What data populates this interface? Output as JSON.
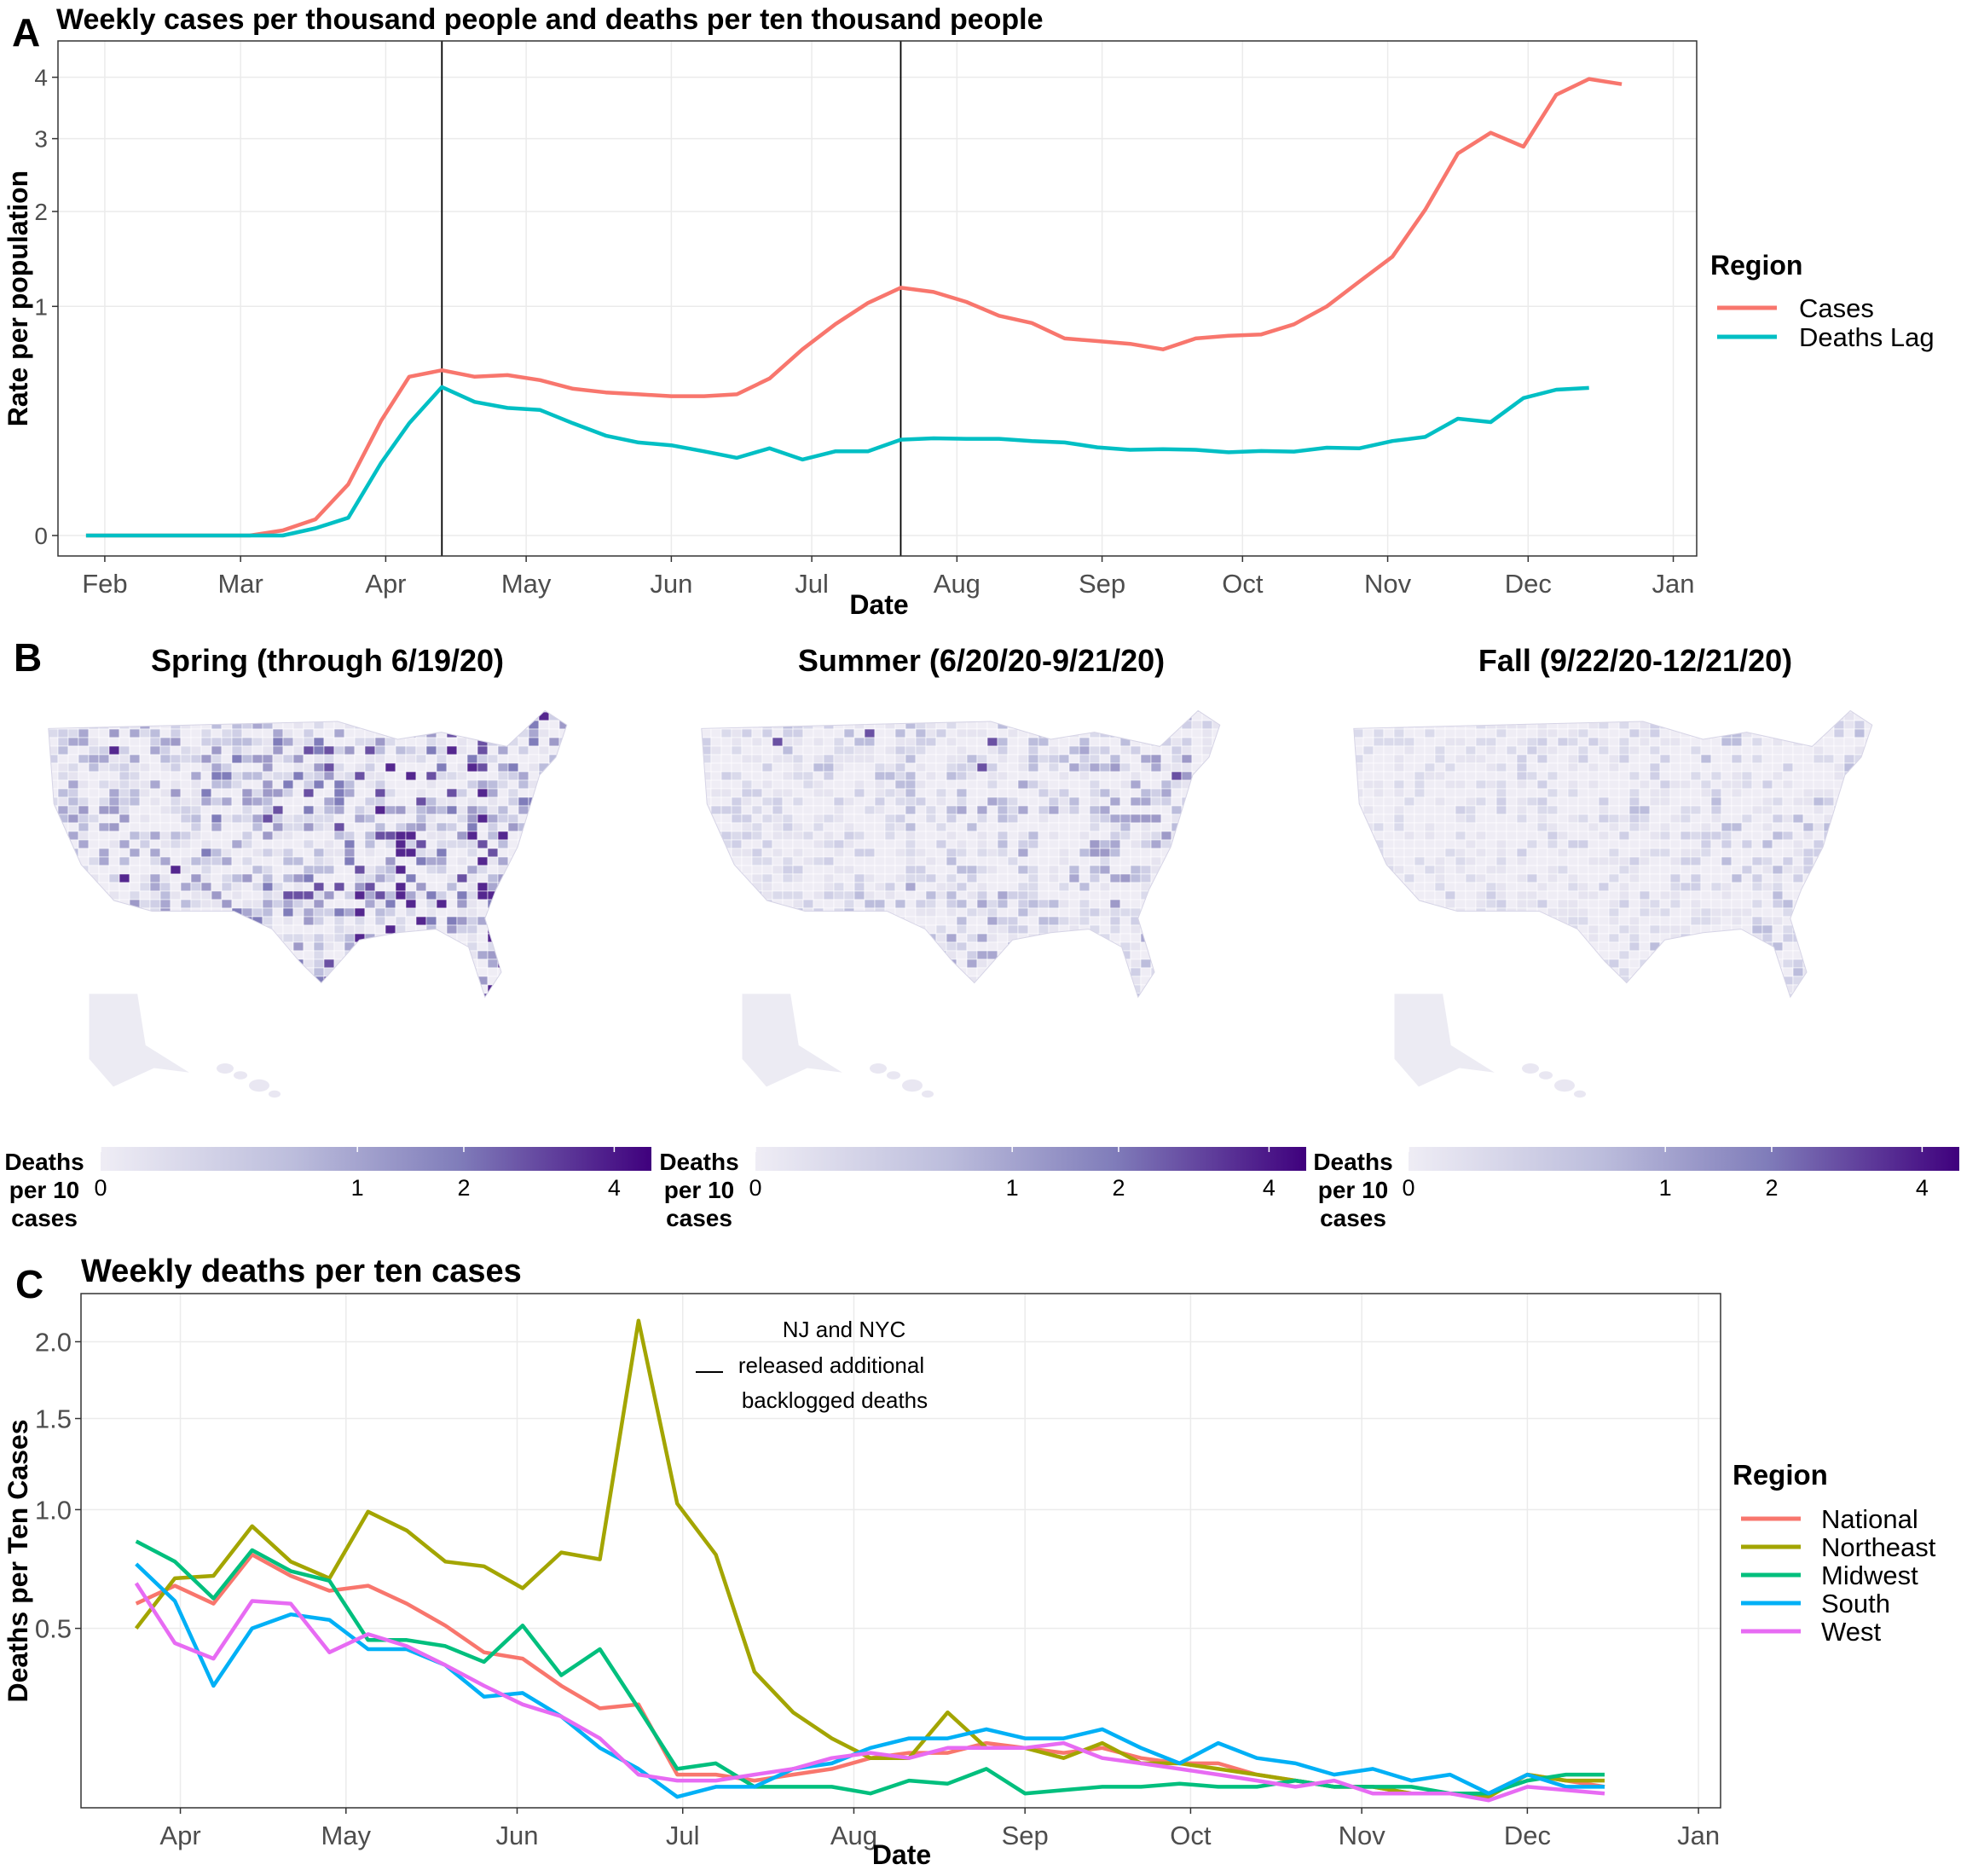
{
  "panel_labels": {
    "a": "A",
    "b": "B",
    "c": "C"
  },
  "chart_data": [
    {
      "type": "line",
      "title": "Weekly cases per thousand people and deaths per ten thousand people",
      "xlabel": "Date",
      "ylabel": "Rate per population",
      "y_scale": "sqrt",
      "ylim": [
        0,
        4.5
      ],
      "yticks": [
        0,
        1,
        2,
        3,
        4
      ],
      "xlim": [
        "2020-01-22",
        "2021-01-06"
      ],
      "xticks": [
        {
          "date": "2020-02-01",
          "label": "Feb"
        },
        {
          "date": "2020-03-01",
          "label": "Mar"
        },
        {
          "date": "2020-04-01",
          "label": "Apr"
        },
        {
          "date": "2020-05-01",
          "label": "May"
        },
        {
          "date": "2020-06-01",
          "label": "Jun"
        },
        {
          "date": "2020-07-01",
          "label": "Jul"
        },
        {
          "date": "2020-08-01",
          "label": "Aug"
        },
        {
          "date": "2020-09-01",
          "label": "Sep"
        },
        {
          "date": "2020-10-01",
          "label": "Oct"
        },
        {
          "date": "2020-11-01",
          "label": "Nov"
        },
        {
          "date": "2020-12-01",
          "label": "Dec"
        },
        {
          "date": "2021-01-01",
          "label": "Jan"
        }
      ],
      "vlines": [
        "2020-04-13",
        "2020-07-20"
      ],
      "grid": true,
      "legend": {
        "title": "Region",
        "position": "right"
      },
      "series": [
        {
          "name": "Cases",
          "color": "#F8766D",
          "points": [
            [
              "2020-01-28",
              0
            ],
            [
              "2020-02-04",
              0
            ],
            [
              "2020-02-11",
              0
            ],
            [
              "2020-02-18",
              0
            ],
            [
              "2020-02-25",
              0
            ],
            [
              "2020-03-03",
              0
            ],
            [
              "2020-03-10",
              0.0005
            ],
            [
              "2020-03-17",
              0.005
            ],
            [
              "2020-03-24",
              0.05
            ],
            [
              "2020-03-31",
              0.25
            ],
            [
              "2020-04-06",
              0.48
            ],
            [
              "2020-04-13",
              0.52
            ],
            [
              "2020-04-20",
              0.48
            ],
            [
              "2020-04-27",
              0.49
            ],
            [
              "2020-05-04",
              0.46
            ],
            [
              "2020-05-11",
              0.41
            ],
            [
              "2020-05-18",
              0.39
            ],
            [
              "2020-05-25",
              0.38
            ],
            [
              "2020-06-01",
              0.37
            ],
            [
              "2020-06-08",
              0.37
            ],
            [
              "2020-06-15",
              0.38
            ],
            [
              "2020-06-22",
              0.47
            ],
            [
              "2020-06-29",
              0.66
            ],
            [
              "2020-07-06",
              0.85
            ],
            [
              "2020-07-13",
              1.03
            ],
            [
              "2020-07-20",
              1.17
            ],
            [
              "2020-07-27",
              1.13
            ],
            [
              "2020-08-03",
              1.04
            ],
            [
              "2020-08-10",
              0.92
            ],
            [
              "2020-08-17",
              0.86
            ],
            [
              "2020-08-24",
              0.74
            ],
            [
              "2020-08-31",
              0.72
            ],
            [
              "2020-09-07",
              0.7
            ],
            [
              "2020-09-14",
              0.66
            ],
            [
              "2020-09-21",
              0.74
            ],
            [
              "2020-09-28",
              0.76
            ],
            [
              "2020-10-05",
              0.77
            ],
            [
              "2020-10-12",
              0.85
            ],
            [
              "2020-10-19",
              1.0
            ],
            [
              "2020-10-26",
              1.23
            ],
            [
              "2020-11-02",
              1.48
            ],
            [
              "2020-11-09",
              2.02
            ],
            [
              "2020-11-16",
              2.78
            ],
            [
              "2020-11-23",
              3.09
            ],
            [
              "2020-11-30",
              2.88
            ],
            [
              "2020-12-07",
              3.7
            ],
            [
              "2020-12-14",
              3.97
            ],
            [
              "2020-12-21",
              3.88
            ]
          ]
        },
        {
          "name": "Deaths Lag",
          "color": "#00BFC4",
          "points": [
            [
              "2020-01-28",
              0
            ],
            [
              "2020-02-04",
              0
            ],
            [
              "2020-02-11",
              0
            ],
            [
              "2020-02-18",
              0
            ],
            [
              "2020-02-25",
              0
            ],
            [
              "2020-03-03",
              0
            ],
            [
              "2020-03-10",
              0
            ],
            [
              "2020-03-17",
              0.001
            ],
            [
              "2020-03-24",
              0.006
            ],
            [
              "2020-03-31",
              0.1
            ],
            [
              "2020-04-06",
              0.24
            ],
            [
              "2020-04-13",
              0.42
            ],
            [
              "2020-04-20",
              0.34
            ],
            [
              "2020-04-27",
              0.31
            ],
            [
              "2020-05-04",
              0.3
            ],
            [
              "2020-05-11",
              0.24
            ],
            [
              "2020-05-18",
              0.19
            ],
            [
              "2020-05-25",
              0.165
            ],
            [
              "2020-06-01",
              0.155
            ],
            [
              "2020-06-08",
              0.135
            ],
            [
              "2020-06-15",
              0.115
            ],
            [
              "2020-06-22",
              0.145
            ],
            [
              "2020-06-29",
              0.11
            ],
            [
              "2020-07-06",
              0.135
            ],
            [
              "2020-07-13",
              0.135
            ],
            [
              "2020-07-20",
              0.175
            ],
            [
              "2020-07-27",
              0.18
            ],
            [
              "2020-08-03",
              0.178
            ],
            [
              "2020-08-10",
              0.178
            ],
            [
              "2020-08-17",
              0.17
            ],
            [
              "2020-08-24",
              0.165
            ],
            [
              "2020-08-31",
              0.148
            ],
            [
              "2020-09-07",
              0.14
            ],
            [
              "2020-09-14",
              0.142
            ],
            [
              "2020-09-21",
              0.14
            ],
            [
              "2020-09-28",
              0.132
            ],
            [
              "2020-10-05",
              0.136
            ],
            [
              "2020-10-12",
              0.134
            ],
            [
              "2020-10-19",
              0.147
            ],
            [
              "2020-10-26",
              0.145
            ],
            [
              "2020-11-02",
              0.17
            ],
            [
              "2020-11-09",
              0.185
            ],
            [
              "2020-11-16",
              0.26
            ],
            [
              "2020-11-23",
              0.245
            ],
            [
              "2020-11-30",
              0.36
            ],
            [
              "2020-12-07",
              0.405
            ],
            [
              "2020-12-14",
              0.415
            ]
          ]
        }
      ]
    },
    {
      "type": "heatmap",
      "subtype": "choropleth",
      "panels": [
        {
          "title": "Spring (through 6/19/20)",
          "relative_intensity": 1.0
        },
        {
          "title": "Summer (6/20/20-9/21/20)",
          "relative_intensity": 0.62
        },
        {
          "title": "Fall (9/22/20-12/21/20)",
          "relative_intensity": 0.45
        }
      ],
      "colorbar": {
        "title": [
          "Deaths",
          "per 10",
          "cases"
        ],
        "scale": "sqrt",
        "range": [
          0,
          4.6
        ],
        "ticks": [
          0,
          1,
          2,
          4
        ],
        "low_color": "#EFEDF5",
        "high_color": "#3F007D"
      }
    },
    {
      "type": "line",
      "title": "Weekly deaths per ten cases",
      "xlabel": "Date",
      "ylabel": "Deaths per Ten Cases",
      "y_scale": "sqrt",
      "ylim": [
        0.07,
        2.35
      ],
      "yticks": [
        0.5,
        1.0,
        1.5,
        2.0
      ],
      "ytick_labels": [
        "0.5",
        "1.0",
        "1.5",
        "2.0"
      ],
      "xlim": [
        "2020-03-14",
        "2021-01-05"
      ],
      "xticks": [
        {
          "date": "2020-04-01",
          "label": "Apr"
        },
        {
          "date": "2020-05-01",
          "label": "May"
        },
        {
          "date": "2020-06-01",
          "label": "Jun"
        },
        {
          "date": "2020-07-01",
          "label": "Jul"
        },
        {
          "date": "2020-08-01",
          "label": "Aug"
        },
        {
          "date": "2020-09-01",
          "label": "Sep"
        },
        {
          "date": "2020-10-01",
          "label": "Oct"
        },
        {
          "date": "2020-11-01",
          "label": "Nov"
        },
        {
          "date": "2020-12-01",
          "label": "Dec"
        },
        {
          "date": "2021-01-01",
          "label": "Jan"
        }
      ],
      "grid": true,
      "annotation": {
        "lines": [
          "NJ and NYC",
          "released additional",
          "backlogged deaths"
        ],
        "date": "2020-06-30"
      },
      "legend": {
        "title": "Region",
        "position": "right"
      },
      "dates": [
        "2020-03-24",
        "2020-03-31",
        "2020-04-07",
        "2020-04-14",
        "2020-04-21",
        "2020-04-28",
        "2020-05-05",
        "2020-05-12",
        "2020-05-19",
        "2020-05-26",
        "2020-06-02",
        "2020-06-09",
        "2020-06-16",
        "2020-06-23",
        "2020-06-30",
        "2020-07-07",
        "2020-07-14",
        "2020-07-21",
        "2020-07-28",
        "2020-08-04",
        "2020-08-11",
        "2020-08-18",
        "2020-08-25",
        "2020-09-01",
        "2020-09-08",
        "2020-09-15",
        "2020-09-22",
        "2020-09-29",
        "2020-10-06",
        "2020-10-13",
        "2020-10-20",
        "2020-10-27",
        "2020-11-03",
        "2020-11-10",
        "2020-11-17",
        "2020-11-24",
        "2020-12-01",
        "2020-12-08",
        "2020-12-15"
      ],
      "series": [
        {
          "name": "National",
          "color": "#F8766D",
          "values": [
            0.59,
            0.66,
            0.59,
            0.79,
            0.7,
            0.64,
            0.66,
            0.59,
            0.51,
            0.42,
            0.4,
            0.32,
            0.26,
            0.27,
            0.12,
            0.12,
            0.11,
            0.12,
            0.13,
            0.15,
            0.16,
            0.16,
            0.18,
            0.17,
            0.16,
            0.17,
            0.15,
            0.14,
            0.14,
            0.12,
            0.11,
            0.1,
            0.1,
            0.09,
            0.09,
            0.09,
            0.12,
            0.11,
            0.1
          ]
        },
        {
          "name": "Northeast",
          "color": "#A3A500",
          "values": [
            0.5,
            0.69,
            0.7,
            0.92,
            0.76,
            0.69,
            0.99,
            0.9,
            0.76,
            0.74,
            0.65,
            0.8,
            0.77,
            2.15,
            1.03,
            0.79,
            0.36,
            0.25,
            0.19,
            0.15,
            0.15,
            0.25,
            0.17,
            0.17,
            0.15,
            0.18,
            0.14,
            0.14,
            0.13,
            0.12,
            0.11,
            0.1,
            0.1,
            0.09,
            0.09,
            0.085,
            0.12,
            0.11,
            0.11
          ]
        },
        {
          "name": "Midwest",
          "color": "#00BF7D",
          "values": [
            0.85,
            0.76,
            0.61,
            0.81,
            0.72,
            0.68,
            0.46,
            0.46,
            0.44,
            0.39,
            0.51,
            0.35,
            0.43,
            0.26,
            0.13,
            0.14,
            0.1,
            0.1,
            0.1,
            0.09,
            0.11,
            0.105,
            0.13,
            0.09,
            0.095,
            0.1,
            0.1,
            0.105,
            0.1,
            0.1,
            0.11,
            0.1,
            0.1,
            0.1,
            0.09,
            0.09,
            0.11,
            0.12,
            0.12
          ]
        },
        {
          "name": "South",
          "color": "#00B0F6",
          "values": [
            0.75,
            0.6,
            0.32,
            0.5,
            0.55,
            0.53,
            0.43,
            0.43,
            0.38,
            0.29,
            0.3,
            0.24,
            0.17,
            0.13,
            0.085,
            0.1,
            0.1,
            0.13,
            0.14,
            0.17,
            0.19,
            0.19,
            0.21,
            0.19,
            0.19,
            0.21,
            0.17,
            0.14,
            0.18,
            0.15,
            0.14,
            0.12,
            0.13,
            0.11,
            0.12,
            0.09,
            0.12,
            0.1,
            0.1
          ]
        },
        {
          "name": "West",
          "color": "#E76BF3",
          "values": [
            0.67,
            0.45,
            0.4,
            0.6,
            0.59,
            0.42,
            0.48,
            0.44,
            0.38,
            0.32,
            0.27,
            0.24,
            0.19,
            0.12,
            0.11,
            0.11,
            0.12,
            0.13,
            0.15,
            0.16,
            0.15,
            0.17,
            0.17,
            0.17,
            0.18,
            0.15,
            0.14,
            0.13,
            0.12,
            0.11,
            0.1,
            0.11,
            0.09,
            0.09,
            0.09,
            0.08,
            0.1,
            0.095,
            0.09
          ]
        }
      ]
    }
  ]
}
